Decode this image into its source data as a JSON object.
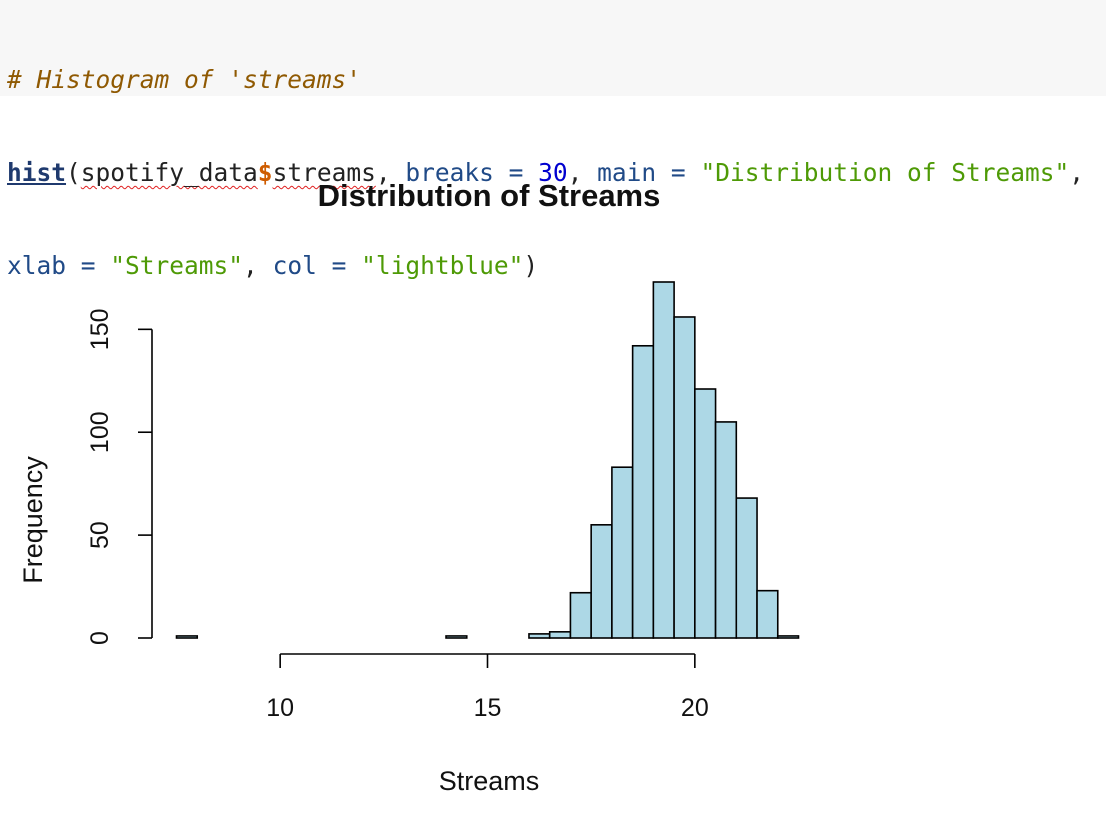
{
  "code": {
    "comment": "# Histogram of 'streams'",
    "fn": "hist",
    "paren_open": "(",
    "obj": "spotify_data",
    "dollar": "$",
    "field": "streams",
    "comma1": ", ",
    "arg_breaks": "breaks",
    "eq1": " = ",
    "breaks_val": "30",
    "comma2": ", ",
    "arg_main": "main",
    "eq2": " = ",
    "main_val": "\"Distribution of Streams\"",
    "comma3": ",",
    "arg_xlab": "xlab",
    "eq3": " = ",
    "xlab_val": "\"Streams\"",
    "comma4": ", ",
    "arg_col": "col",
    "eq4": " = ",
    "col_val": "\"lightblue\"",
    "paren_close": ")"
  },
  "chart_data": {
    "type": "bar",
    "title": "Distribution of Streams",
    "xlabel": "Streams",
    "ylabel": "Frequency",
    "bar_color": "#add8e6",
    "bin_width": 0.5,
    "bin_starts": [
      7.5,
      8.0,
      8.5,
      9.0,
      9.5,
      10.0,
      10.5,
      11.0,
      11.5,
      12.0,
      12.5,
      13.0,
      13.5,
      14.0,
      14.5,
      15.0,
      15.5,
      16.0,
      16.5,
      17.0,
      17.5,
      18.0,
      18.5,
      19.0,
      19.5,
      20.0,
      20.5,
      21.0,
      21.5,
      22.0
    ],
    "values": [
      1,
      0,
      0,
      0,
      0,
      0,
      0,
      0,
      0,
      0,
      0,
      0,
      0,
      1,
      0,
      0,
      0,
      2,
      3,
      22,
      55,
      83,
      142,
      173,
      156,
      121,
      105,
      68,
      23,
      1
    ],
    "xlim": [
      7.5,
      22.5
    ],
    "ylim": [
      0,
      173
    ],
    "x_ticks": [
      10,
      15,
      20
    ],
    "y_ticks": [
      0,
      50,
      100,
      150
    ],
    "grid": false,
    "legend": "none"
  }
}
